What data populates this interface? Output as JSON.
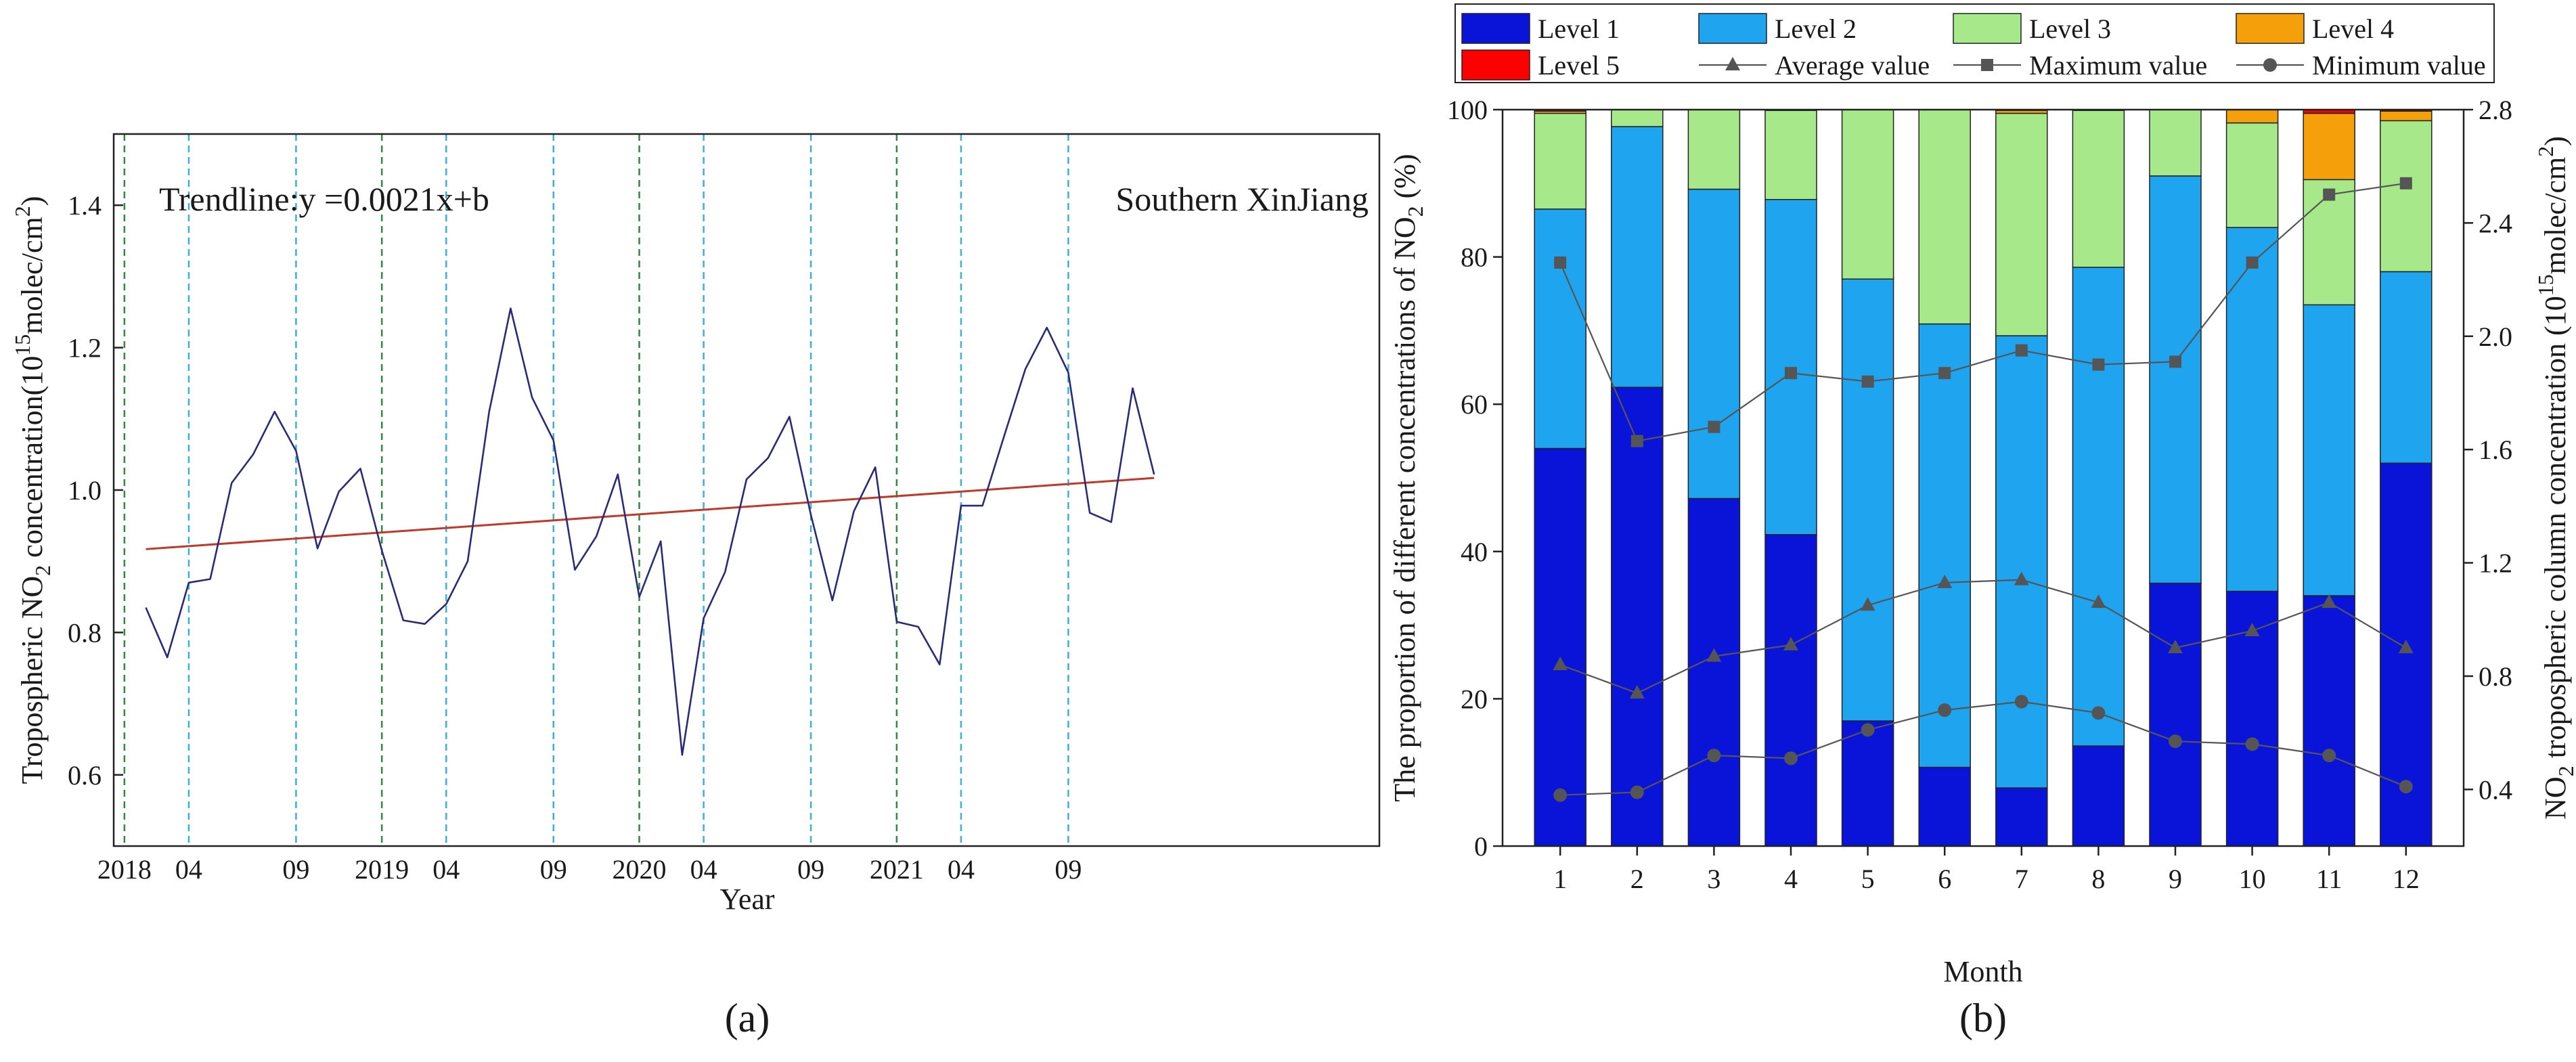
{
  "chart_data": [
    {
      "type": "line",
      "panel_label": "(a)",
      "ylabel": "Tropospheric NO2 concentration(10^15molec/cm^2)",
      "ylabel_parts": {
        "pre": "Tropospheric NO",
        "sub": "2",
        "mid": " concentration(10",
        "sup": "15",
        "post": "molec/cm",
        "sup2": "2",
        "end": ")"
      },
      "xlabel": "Year",
      "ylim": [
        0.5,
        1.5
      ],
      "yticks": [
        "0.6",
        "0.8",
        "1.0",
        "1.2",
        "1.4"
      ],
      "xlim": [
        -1.5,
        57.5
      ],
      "xticks": [
        {
          "label": "2018",
          "x": -1,
          "line": "green"
        },
        {
          "label": "04",
          "x": 2,
          "line": "blue"
        },
        {
          "label": "09",
          "x": 7,
          "line": "blue"
        },
        {
          "label": "2019",
          "x": 11,
          "line": "green"
        },
        {
          "label": "04",
          "x": 14,
          "line": "blue"
        },
        {
          "label": "09",
          "x": 19,
          "line": "blue"
        },
        {
          "label": "2020",
          "x": 23,
          "line": "green"
        },
        {
          "label": "04",
          "x": 26,
          "line": "blue"
        },
        {
          "label": "09",
          "x": 31,
          "line": "blue"
        },
        {
          "label": "2021",
          "x": 35,
          "line": "green"
        },
        {
          "label": "04",
          "x": 38,
          "line": "blue"
        },
        {
          "label": "09",
          "x": 43,
          "line": "blue"
        }
      ],
      "series": [
        {
          "name": "NO2 concentration",
          "color": "#2a2a7a",
          "values": [
            0.835,
            0.765,
            0.87,
            0.875,
            1.01,
            1.05,
            1.11,
            1.055,
            0.918,
            0.998,
            1.03,
            0.915,
            0.817,
            0.812,
            0.84,
            0.9,
            1.11,
            1.255,
            1.13,
            1.07,
            0.888,
            0.935,
            1.022,
            0.85,
            0.928,
            0.628,
            0.82,
            0.885,
            1.015,
            1.045,
            1.103,
            0.965,
            0.845,
            0.97,
            1.032,
            0.815,
            0.808,
            0.755,
            0.978,
            0.978,
            1.075,
            1.17,
            1.228,
            1.165,
            0.968,
            0.955,
            1.143,
            1.022
          ]
        }
      ],
      "trend": {
        "color": "#c0392b",
        "from": 0.917,
        "to": 1.017
      },
      "annotations": {
        "trend": "Trendline:y =0.0021x+b",
        "region": "Southern XinJiang"
      }
    },
    {
      "type": "bar",
      "stacked": true,
      "panel_label": "(b)",
      "xlabel": "Month",
      "categories": [
        "1",
        "2",
        "3",
        "4",
        "5",
        "6",
        "7",
        "8",
        "9",
        "10",
        "11",
        "12"
      ],
      "ylabel_left_parts": {
        "pre": "The proportion of different concentrations of NO",
        "sub": "2",
        "post": " (%)"
      },
      "ylabel_right_parts": {
        "pre": "NO",
        "sub": "2",
        "mid": " tropospheric column concentration (10",
        "sup": "15",
        "post": "molec/cm",
        "sup2": "2",
        "end": ")"
      },
      "ylim_left": [
        0,
        100
      ],
      "yticks_left": [
        "0",
        "20",
        "40",
        "60",
        "80",
        "100"
      ],
      "ylim_right": [
        0.2,
        2.8
      ],
      "yticks_right": [
        "0.4",
        "0.8",
        "1.2",
        "1.6",
        "2.0",
        "2.4",
        "2.8"
      ],
      "series": [
        {
          "name": "Level 1",
          "color": "#0a14d9",
          "values": [
            54.0,
            62.3,
            47.2,
            42.3,
            17.0,
            10.7,
            7.9,
            13.6,
            35.7,
            34.6,
            34.0,
            52.0
          ]
        },
        {
          "name": "Level 2",
          "color": "#1fa5f0",
          "values": [
            32.5,
            35.4,
            42.0,
            45.5,
            60.0,
            60.2,
            61.4,
            65.0,
            55.3,
            49.4,
            39.5,
            26.0
          ]
        },
        {
          "name": "Level 3",
          "color": "#a6e88a",
          "values": [
            13.0,
            2.3,
            10.8,
            12.1,
            23.0,
            29.1,
            30.2,
            21.3,
            9.0,
            14.2,
            17.0,
            20.5
          ]
        },
        {
          "name": "Level 4",
          "color": "#f5a00a",
          "values": [
            0.3,
            0.0,
            0.0,
            0.0,
            0.0,
            0.0,
            0.4,
            0.0,
            0.0,
            1.8,
            9.0,
            1.3
          ]
        },
        {
          "name": "Level 5",
          "color": "#ff0000",
          "values": [
            0.2,
            0.0,
            0.0,
            0.1,
            0.0,
            0.0,
            0.1,
            0.1,
            0.0,
            0.0,
            0.5,
            0.2
          ]
        }
      ],
      "lines": [
        {
          "name": "Average value",
          "marker": "triangle",
          "color": "#555555",
          "values": [
            0.84,
            0.74,
            0.87,
            0.91,
            1.05,
            1.13,
            1.14,
            1.06,
            0.9,
            0.96,
            1.06,
            0.9
          ]
        },
        {
          "name": "Maximum value",
          "marker": "square",
          "color": "#555555",
          "values": [
            2.26,
            1.63,
            1.68,
            1.87,
            1.84,
            1.87,
            1.95,
            1.9,
            1.91,
            2.26,
            2.5,
            2.54
          ]
        },
        {
          "name": "Minimum value",
          "marker": "circle",
          "color": "#555555",
          "values": [
            0.38,
            0.39,
            0.52,
            0.51,
            0.61,
            0.68,
            0.71,
            0.67,
            0.57,
            0.56,
            0.52,
            0.41
          ]
        }
      ],
      "legend": [
        "Level 1",
        "Level 2",
        "Level 3",
        "Level 4",
        "Level 5",
        "Average value",
        "Maximum value",
        "Minimum value"
      ]
    }
  ]
}
